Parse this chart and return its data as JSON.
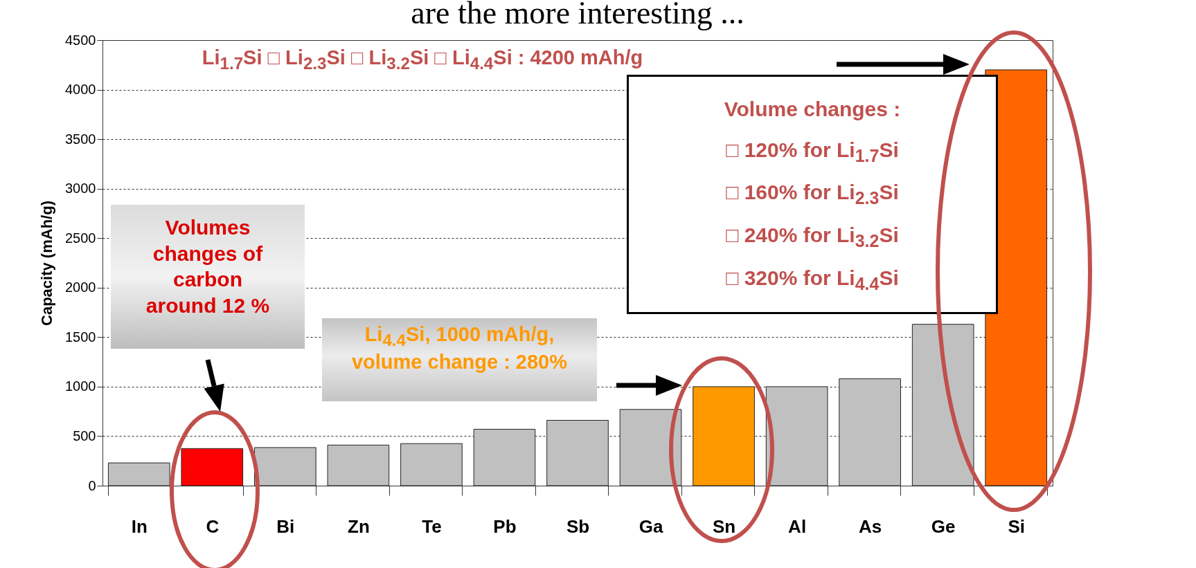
{
  "chart_data": {
    "type": "bar",
    "title": "are the more interesting ...",
    "ylabel": "Capacity (mAh/g)",
    "categories": [
      "In",
      "C",
      "Bi",
      "Zn",
      "Te",
      "Pb",
      "Sb",
      "Ga",
      "Sn",
      "Al",
      "As",
      "Ge",
      "Si"
    ],
    "values": [
      230,
      375,
      385,
      410,
      425,
      570,
      660,
      770,
      1000,
      1000,
      1080,
      1630,
      4200
    ],
    "colors": [
      "#c0c0c0",
      "#ff0000",
      "#c0c0c0",
      "#c0c0c0",
      "#c0c0c0",
      "#c0c0c0",
      "#c0c0c0",
      "#c0c0c0",
      "#ff9900",
      "#c0c0c0",
      "#c0c0c0",
      "#c0c0c0",
      "#ff6600"
    ],
    "ylim": [
      0,
      4500
    ],
    "yticks": [
      0,
      500,
      1000,
      1500,
      2000,
      2500,
      3000,
      3500,
      4000,
      4500
    ],
    "grid": "y",
    "annotations": [
      "Li$_{1.7}$Si □ Li$_{2.3}$Si □ Li$_{3.2}$Si □ Li$_{4.4}$Si : 4200 mAh/g",
      "Volume changes :\n□ 120% for Li$_{1.7}$Si\n□ 160% for Li$_{2.3}$Si\n□ 240% for Li$_{3.2}$Si\n□ 320% for Li$_{4.4}$Si",
      "Volumes changes of carbon around 12 %",
      "Li$_{4.4}$Si, 1000 mAh/g, volume change : 280%"
    ]
  }
}
